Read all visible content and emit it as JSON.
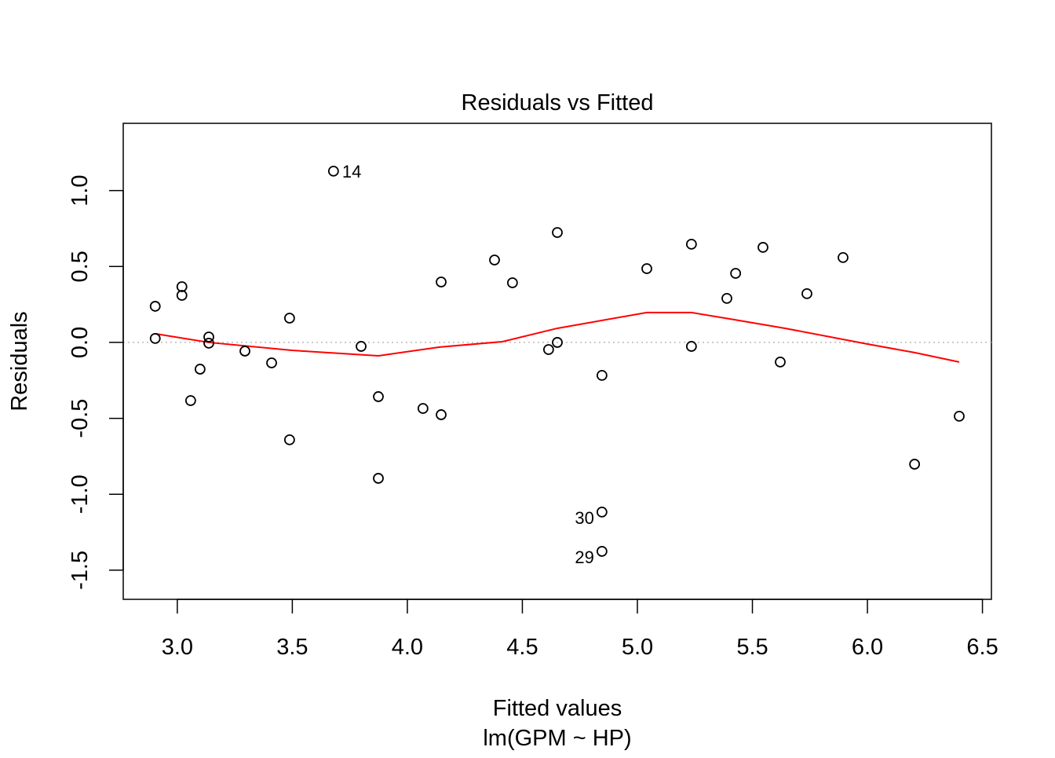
{
  "chart_data": {
    "type": "scatter",
    "title": "Residuals vs Fitted",
    "xlabel": "Fitted values",
    "subtitle": "lm(GPM ~ HP)",
    "ylabel": "Residuals",
    "xlim": [
      2.765,
      6.539
    ],
    "ylim": [
      -1.692,
      1.443
    ],
    "xticks": [
      3.0,
      3.5,
      4.0,
      4.5,
      5.0,
      5.5,
      6.0,
      6.5
    ],
    "xtick_labels": [
      "3.0",
      "3.5",
      "4.0",
      "4.5",
      "5.0",
      "5.5",
      "6.0",
      "6.5"
    ],
    "yticks": [
      -1.5,
      -1.0,
      -0.5,
      0.0,
      0.5,
      1.0
    ],
    "ytick_labels": [
      "-1.5",
      "-1.0",
      "-0.5",
      "0.0",
      "0.5",
      "1.0"
    ],
    "grid": false,
    "reference_line": 0,
    "points": [
      {
        "x": 2.904,
        "y": 0.238
      },
      {
        "x": 2.904,
        "y": 0.026
      },
      {
        "x": 3.02,
        "y": 0.367
      },
      {
        "x": 3.02,
        "y": 0.31
      },
      {
        "x": 3.137,
        "y": 0.036
      },
      {
        "x": 3.137,
        "y": -0.005
      },
      {
        "x": 3.099,
        "y": -0.176
      },
      {
        "x": 3.058,
        "y": -0.383
      },
      {
        "x": 3.294,
        "y": -0.057
      },
      {
        "x": 3.41,
        "y": -0.135
      },
      {
        "x": 3.488,
        "y": 0.16
      },
      {
        "x": 3.488,
        "y": -0.641
      },
      {
        "x": 3.679,
        "y": 1.128,
        "label": "14",
        "label_side": "right"
      },
      {
        "x": 3.799,
        "y": -0.026
      },
      {
        "x": 3.874,
        "y": -0.357
      },
      {
        "x": 3.874,
        "y": -0.895
      },
      {
        "x": 4.068,
        "y": -0.435
      },
      {
        "x": 4.147,
        "y": -0.476
      },
      {
        "x": 4.147,
        "y": 0.398
      },
      {
        "x": 4.379,
        "y": 0.543
      },
      {
        "x": 4.457,
        "y": 0.393
      },
      {
        "x": 4.614,
        "y": -0.047
      },
      {
        "x": 4.652,
        "y": 0.0
      },
      {
        "x": 4.652,
        "y": 0.724
      },
      {
        "x": 4.846,
        "y": -0.217
      },
      {
        "x": 4.846,
        "y": -1.117,
        "label": "30",
        "label_side": "left"
      },
      {
        "x": 4.846,
        "y": -1.376,
        "label": "29",
        "label_side": "left"
      },
      {
        "x": 5.041,
        "y": 0.486
      },
      {
        "x": 5.235,
        "y": 0.647
      },
      {
        "x": 5.235,
        "y": -0.026
      },
      {
        "x": 5.389,
        "y": 0.29
      },
      {
        "x": 5.427,
        "y": 0.455
      },
      {
        "x": 5.546,
        "y": 0.626
      },
      {
        "x": 5.621,
        "y": -0.129
      },
      {
        "x": 5.737,
        "y": 0.321
      },
      {
        "x": 5.894,
        "y": 0.559
      },
      {
        "x": 6.205,
        "y": -0.802
      },
      {
        "x": 6.399,
        "y": -0.486
      }
    ],
    "smooth_line": {
      "color": "#FF0000",
      "x": [
        2.904,
        3.137,
        3.498,
        3.874,
        4.14,
        4.413,
        4.652,
        5.041,
        5.235,
        5.402,
        5.642,
        5.998,
        6.205,
        6.399
      ],
      "y": [
        0.057,
        0.0,
        -0.052,
        -0.088,
        -0.031,
        0.005,
        0.093,
        0.197,
        0.197,
        0.155,
        0.093,
        -0.01,
        -0.067,
        -0.129
      ]
    }
  }
}
